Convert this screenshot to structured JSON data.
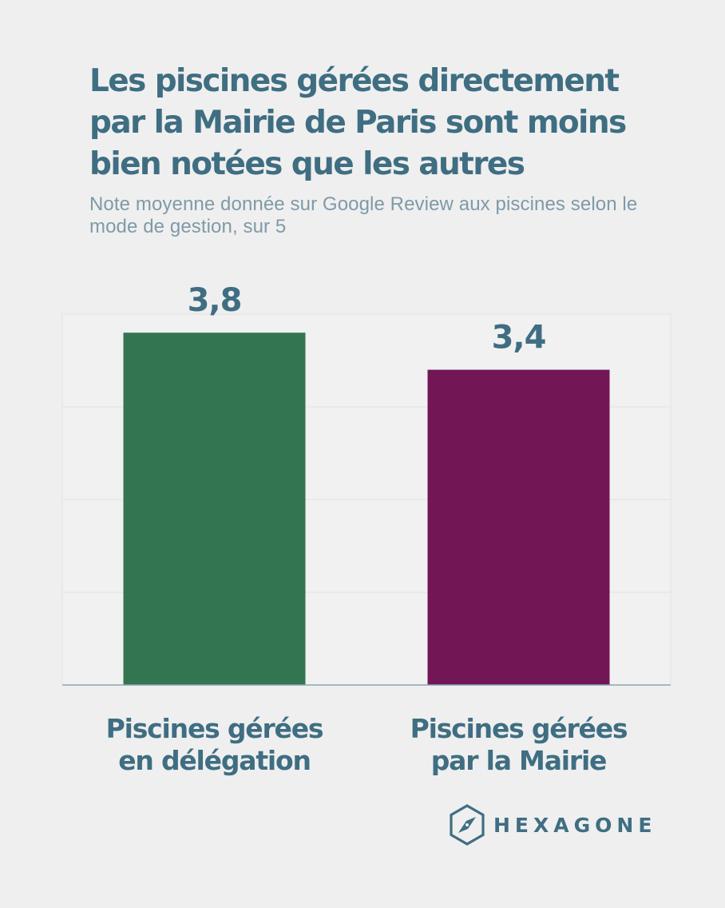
{
  "header": {
    "title": "Les piscines gérées directement par la Mairie de Paris sont moins bien notées que les autres",
    "subtitle": "Note moyenne donnée sur Google Review aux piscines selon le mode de gestion, sur 5"
  },
  "chart_data": {
    "type": "bar",
    "title": "Les piscines gérées directement par la Mairie de Paris sont moins bien notées que les autres",
    "subtitle": "Note moyenne donnée sur Google Review aux piscines selon le mode de gestion, sur 5",
    "categories": [
      [
        "Piscines gérées",
        "en délégation"
      ],
      [
        "Piscines gérées",
        "par la Mairie"
      ]
    ],
    "values": [
      3.8,
      3.4
    ],
    "value_labels": [
      "3,8",
      "3,4"
    ],
    "colors": [
      "#337551",
      "#731656"
    ],
    "xlabel": "",
    "ylabel": "",
    "ylim": [
      0,
      4
    ],
    "grid": true,
    "legend": "none"
  },
  "brand": {
    "name": "HEXAGONE",
    "icon": "hexagon-compass-icon",
    "color": "#3f6e82"
  }
}
